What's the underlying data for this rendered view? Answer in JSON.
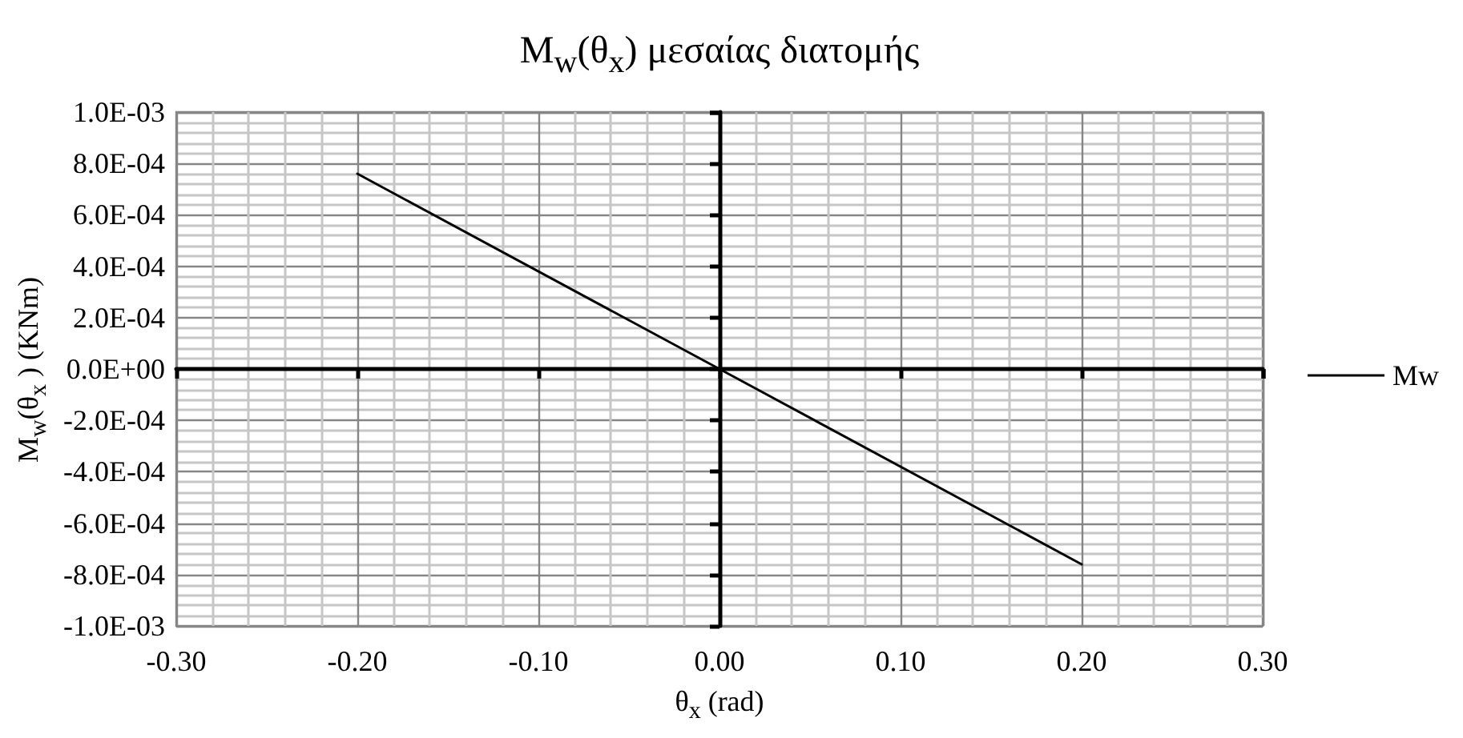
{
  "chart_data": {
    "type": "line",
    "title": "M$_{w}$(θ$_{x}$) μεσαίας διατομής",
    "xlabel": "θ$_{x}$ (rad)",
    "ylabel": "M$_{w}$(θ$_{x}$ ) (KNm)",
    "x": [
      -0.2,
      0,
      0.2
    ],
    "series": [
      {
        "name": "Mw",
        "color": "#000000",
        "values": [
          0.00076,
          0,
          -0.00076
        ]
      }
    ],
    "xlim": [
      -0.3,
      0.3
    ],
    "xticks": [
      {
        "value": -0.3,
        "label": "-0.30"
      },
      {
        "value": -0.2,
        "label": "-0.20"
      },
      {
        "value": -0.1,
        "label": "-0.10"
      },
      {
        "value": 0,
        "label": "0.00"
      },
      {
        "value": 0.1,
        "label": "0.10"
      },
      {
        "value": 0.2,
        "label": "0.20"
      },
      {
        "value": 0.3,
        "label": "0.30"
      }
    ],
    "ylim": [
      -0.001,
      0.001
    ],
    "yticks": [
      {
        "value": -0.001,
        "label": "-1.0E-03"
      },
      {
        "value": -0.0008,
        "label": "-8.0E-04"
      },
      {
        "value": -0.0006,
        "label": "-6.0E-04"
      },
      {
        "value": -0.0004,
        "label": "-4.0E-04"
      },
      {
        "value": -0.0002,
        "label": "-2.0E-04"
      },
      {
        "value": 0,
        "label": "0.0E+00"
      },
      {
        "value": 0.0002,
        "label": "2.0E-04"
      },
      {
        "value": 0.0004,
        "label": "4.0E-04"
      },
      {
        "value": 0.0006,
        "label": "6.0E-04"
      },
      {
        "value": 0.0008,
        "label": "8.0E-04"
      },
      {
        "value": 0.001,
        "label": "1.0E-03"
      }
    ],
    "grid": true,
    "legend": "right",
    "marker": "none",
    "line_style": "solid"
  }
}
